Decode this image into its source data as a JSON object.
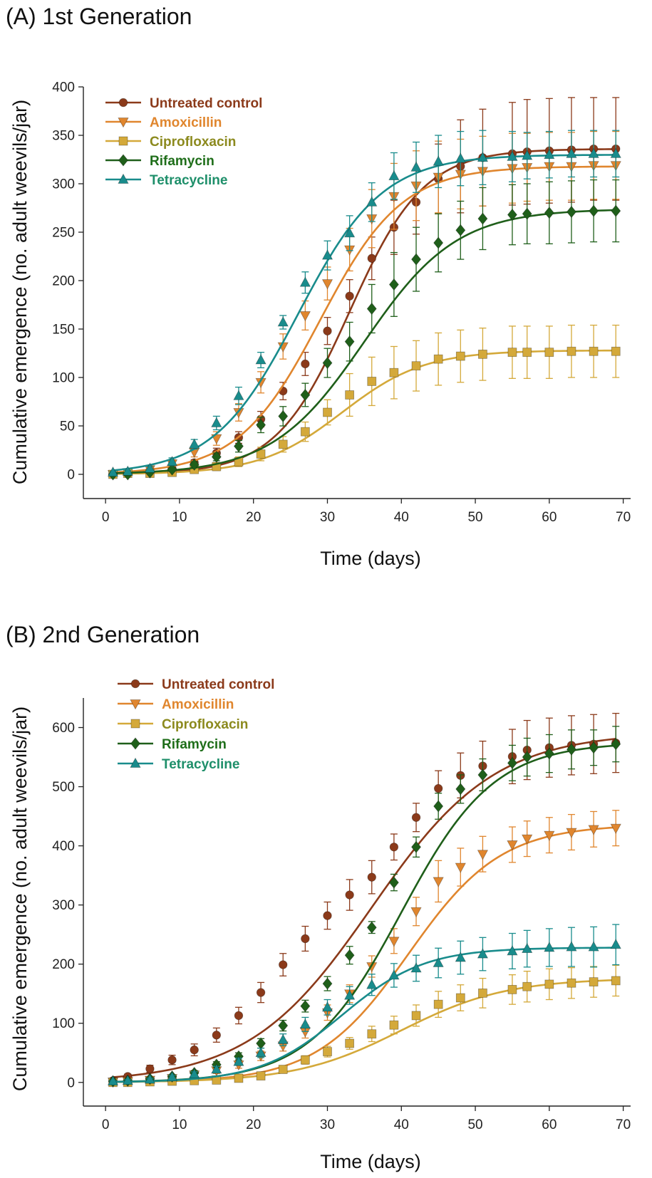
{
  "figure": {
    "series_styles": [
      {
        "name": "Untreated control",
        "color": "#8B3A1A",
        "label_color": "#8B3A1A",
        "marker": "circle"
      },
      {
        "name": "Amoxicillin",
        "color": "#E0862E",
        "label_color": "#E0862E",
        "marker": "triangle-down"
      },
      {
        "name": "Ciprofloxacin",
        "color": "#D4A93A",
        "label_color": "#8C8A1E",
        "marker": "square"
      },
      {
        "name": "Rifamycin",
        "color": "#1F5F1A",
        "label_color": "#1F6E1A",
        "marker": "diamond"
      },
      {
        "name": "Tetracycline",
        "color": "#198C8C",
        "label_color": "#1E8F6A",
        "marker": "triangle-up"
      }
    ]
  },
  "chart_data": [
    {
      "type": "line",
      "title": "(A) 1st Generation",
      "xlabel": "Time (days)",
      "ylabel": "Cumulative emergence (no. adult weevils/jar)",
      "xlim": [
        -3,
        71
      ],
      "ylim": [
        -25,
        400
      ],
      "xticks": [
        0,
        10,
        20,
        30,
        40,
        50,
        60,
        70
      ],
      "yticks": [
        0,
        50,
        100,
        150,
        200,
        250,
        300,
        350,
        400
      ],
      "grid": false,
      "legend_position": "top-left",
      "x": [
        1,
        3,
        6,
        9,
        12,
        15,
        18,
        21,
        24,
        27,
        30,
        33,
        36,
        39,
        42,
        45,
        48,
        51,
        55,
        57,
        60,
        63,
        66,
        69
      ],
      "series": [
        {
          "name": "Untreated control",
          "fit": {
            "K": 336,
            "r": 0.2,
            "t0": 33
          },
          "values": [
            0,
            1,
            3,
            6,
            12,
            22,
            38,
            57,
            86,
            114,
            148,
            184,
            223,
            255,
            281,
            305,
            318,
            327,
            331,
            333,
            334,
            335,
            336,
            336
          ],
          "errors": [
            1,
            1,
            2,
            2,
            3,
            5,
            6,
            8,
            9,
            12,
            14,
            17,
            22,
            28,
            33,
            36,
            48,
            50,
            53,
            54,
            54,
            54,
            53,
            53
          ]
        },
        {
          "name": "Amoxicillin",
          "fit": {
            "K": 318,
            "r": 0.18,
            "t0": 29
          },
          "values": [
            0,
            2,
            5,
            11,
            23,
            37,
            64,
            95,
            132,
            164,
            197,
            232,
            264,
            287,
            298,
            307,
            310,
            313,
            316,
            317,
            318,
            318,
            319,
            319
          ],
          "errors": [
            1,
            1,
            2,
            4,
            5,
            7,
            9,
            11,
            13,
            15,
            17,
            22,
            30,
            34,
            36,
            37,
            36,
            36,
            36,
            35,
            35,
            35,
            35,
            35
          ]
        },
        {
          "name": "Ciprofloxacin",
          "fit": {
            "K": 128,
            "r": 0.18,
            "t0": 32
          },
          "values": [
            0,
            1,
            1,
            2,
            5,
            8,
            13,
            21,
            31,
            44,
            64,
            82,
            96,
            105,
            112,
            119,
            122,
            124,
            126,
            126,
            126,
            127,
            127,
            127
          ],
          "errors": [
            0,
            0,
            1,
            2,
            3,
            4,
            5,
            7,
            8,
            10,
            13,
            22,
            25,
            27,
            26,
            27,
            27,
            27,
            27,
            27,
            27,
            27,
            27,
            27
          ]
        },
        {
          "name": "Rifamycin",
          "fit": {
            "K": 274,
            "r": 0.16,
            "t0": 35
          },
          "values": [
            0,
            0,
            2,
            5,
            10,
            18,
            29,
            51,
            60,
            82,
            115,
            137,
            171,
            196,
            222,
            239,
            252,
            264,
            268,
            269,
            270,
            271,
            272,
            272
          ],
          "errors": [
            0,
            1,
            1,
            2,
            3,
            4,
            6,
            8,
            10,
            12,
            15,
            20,
            25,
            33,
            33,
            30,
            30,
            32,
            31,
            31,
            32,
            32,
            32,
            32
          ]
        },
        {
          "name": "Tetracycline",
          "fit": {
            "K": 330,
            "r": 0.175,
            "t0": 26
          },
          "values": [
            2,
            3,
            6,
            13,
            31,
            53,
            81,
            118,
            157,
            198,
            226,
            249,
            281,
            308,
            317,
            323,
            326,
            327,
            328,
            329,
            330,
            331,
            331,
            331
          ],
          "errors": [
            1,
            1,
            2,
            4,
            5,
            7,
            9,
            8,
            7,
            11,
            15,
            18,
            20,
            24,
            26,
            27,
            28,
            28,
            26,
            24,
            24,
            24,
            24,
            24
          ]
        }
      ]
    },
    {
      "type": "line",
      "title": "(B) 2nd Generation",
      "xlabel": "Time (days)",
      "ylabel": "Cumulative emergence (no. adult weevils/jar)",
      "xlim": [
        -3,
        71
      ],
      "ylim": [
        -40,
        650
      ],
      "xticks": [
        0,
        10,
        20,
        30,
        40,
        50,
        60,
        70
      ],
      "yticks": [
        0,
        100,
        200,
        300,
        400,
        500,
        600
      ],
      "grid": false,
      "legend_position": "top-left",
      "x": [
        1,
        3,
        6,
        9,
        12,
        15,
        18,
        21,
        24,
        27,
        30,
        33,
        36,
        39,
        42,
        45,
        48,
        51,
        55,
        57,
        60,
        63,
        66,
        69
      ],
      "series": [
        {
          "name": "Untreated control",
          "fit": {
            "K": 592,
            "r": 0.12,
            "t0": 36
          },
          "values": [
            3,
            10,
            23,
            38,
            55,
            80,
            113,
            152,
            199,
            243,
            282,
            317,
            347,
            398,
            448,
            497,
            519,
            535,
            551,
            562,
            566,
            570,
            572,
            574
          ],
          "errors": [
            3,
            4,
            6,
            8,
            10,
            12,
            14,
            17,
            19,
            21,
            23,
            26,
            28,
            22,
            24,
            30,
            38,
            42,
            46,
            50,
            50,
            50,
            50,
            50
          ]
        },
        {
          "name": "Amoxicillin",
          "fit": {
            "K": 436,
            "r": 0.16,
            "t0": 41
          },
          "values": [
            1,
            2,
            4,
            7,
            13,
            20,
            30,
            45,
            62,
            86,
            118,
            150,
            196,
            239,
            289,
            340,
            364,
            386,
            402,
            412,
            418,
            423,
            428,
            430
          ],
          "errors": [
            1,
            1,
            2,
            3,
            4,
            5,
            6,
            8,
            9,
            11,
            13,
            15,
            18,
            21,
            24,
            35,
            32,
            30,
            30,
            30,
            30,
            30,
            30,
            30
          ]
        },
        {
          "name": "Ciprofloxacin",
          "fit": {
            "K": 176,
            "r": 0.14,
            "t0": 40
          },
          "values": [
            0,
            0,
            1,
            2,
            3,
            4,
            7,
            11,
            22,
            38,
            52,
            66,
            82,
            97,
            113,
            132,
            143,
            151,
            157,
            162,
            166,
            168,
            170,
            172
          ],
          "errors": [
            0,
            0,
            1,
            1,
            2,
            2,
            3,
            4,
            6,
            7,
            9,
            10,
            13,
            15,
            18,
            22,
            22,
            25,
            25,
            26,
            26,
            26,
            26,
            26
          ]
        },
        {
          "name": "Rifamycin",
          "fit": {
            "K": 575,
            "r": 0.16,
            "t0": 40
          },
          "values": [
            2,
            3,
            6,
            10,
            16,
            30,
            44,
            66,
            96,
            129,
            167,
            215,
            262,
            338,
            398,
            467,
            496,
            520,
            540,
            550,
            556,
            563,
            566,
            572
          ],
          "errors": [
            1,
            2,
            2,
            3,
            4,
            5,
            6,
            8,
            9,
            10,
            12,
            15,
            10,
            14,
            17,
            22,
            24,
            27,
            30,
            32,
            32,
            33,
            30,
            30
          ]
        },
        {
          "name": "Tetracycline",
          "fit": {
            "K": 228,
            "r": 0.18,
            "t0": 32
          },
          "values": [
            2,
            3,
            5,
            9,
            14,
            22,
            35,
            50,
            72,
            98,
            127,
            147,
            165,
            181,
            193,
            202,
            211,
            217,
            222,
            226,
            228,
            229,
            229,
            233
          ],
          "errors": [
            1,
            2,
            2,
            3,
            4,
            5,
            6,
            8,
            10,
            12,
            13,
            15,
            18,
            20,
            22,
            25,
            28,
            28,
            30,
            31,
            32,
            33,
            34,
            34
          ]
        }
      ]
    }
  ]
}
